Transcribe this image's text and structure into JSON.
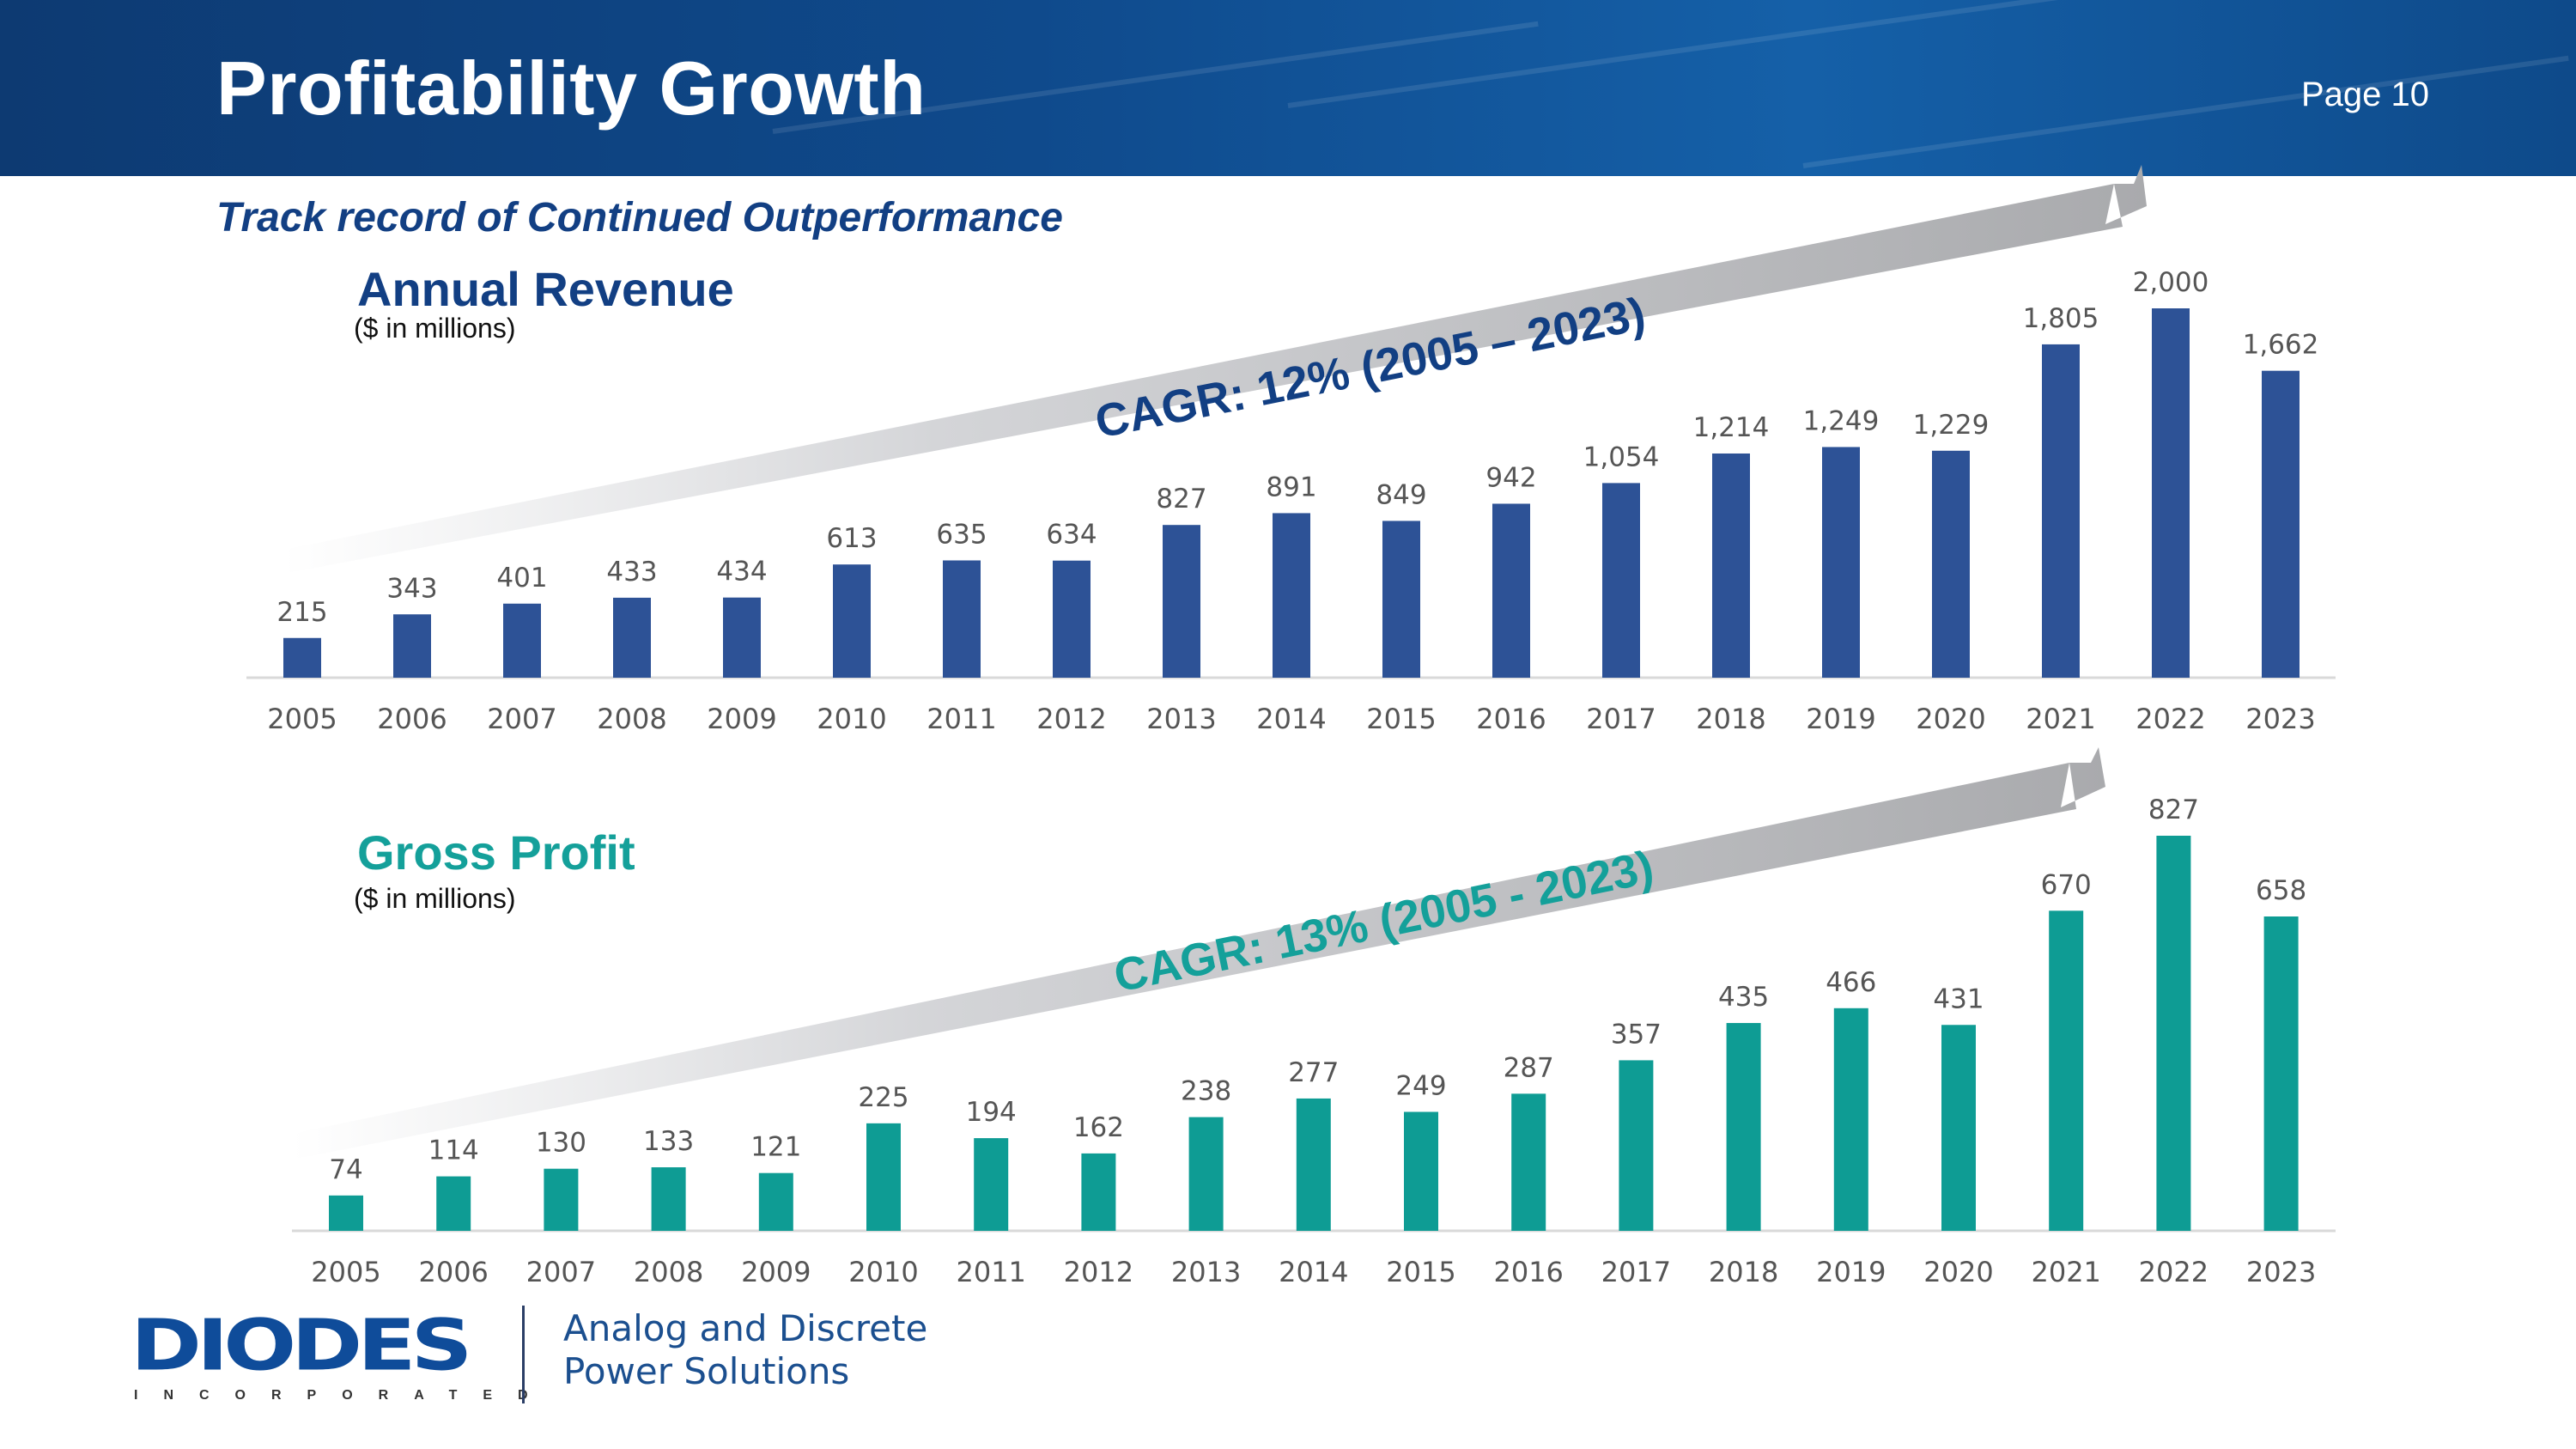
{
  "header": {
    "title": "Profitability Growth",
    "page_number": "Page 10"
  },
  "subtitle": "Track record of Continued Outperformance",
  "colors": {
    "header_blue": "#0f4a8c",
    "revenue_bar": "#2d5296",
    "profit_bar": "#0e9c94",
    "revenue_title": "#123f83",
    "profit_title": "#14a09a",
    "arrow_gray": "#b7b8bb"
  },
  "footer": {
    "logo_text": "DIODES",
    "logo_sub": "INCORPORATED",
    "tagline_line1": "Analog and Discrete",
    "tagline_line2": "Power Solutions"
  },
  "chart_data": [
    {
      "type": "bar",
      "title": "Annual Revenue",
      "unit_note": "($ in millions)",
      "cagr_label": "CAGR: 12% (2005 – 2023)",
      "categories": [
        "2005",
        "2006",
        "2007",
        "2008",
        "2009",
        "2010",
        "2011",
        "2012",
        "2013",
        "2014",
        "2015",
        "2016",
        "2017",
        "2018",
        "2019",
        "2020",
        "2021",
        "2022",
        "2023"
      ],
      "values": [
        215,
        343,
        401,
        433,
        434,
        613,
        635,
        634,
        827,
        891,
        849,
        942,
        1054,
        1214,
        1249,
        1229,
        1805,
        2000,
        1662
      ],
      "data_labels": [
        "215",
        "343",
        "401",
        "433",
        "434",
        "613",
        "635",
        "634",
        "827",
        "891",
        "849",
        "942",
        "1,054",
        "1,214",
        "1,249",
        "1,229",
        "1,805",
        "2,000",
        "1,662"
      ],
      "ylim": [
        0,
        2000
      ],
      "xlabel": "",
      "ylabel": ""
    },
    {
      "type": "bar",
      "title": "Gross Profit",
      "unit_note": "($ in millions)",
      "cagr_label": "CAGR: 13% (2005 - 2023)",
      "categories": [
        "2005",
        "2006",
        "2007",
        "2008",
        "2009",
        "2010",
        "2011",
        "2012",
        "2013",
        "2014",
        "2015",
        "2016",
        "2017",
        "2018",
        "2019",
        "2020",
        "2021",
        "2022",
        "2023"
      ],
      "values": [
        74,
        114,
        130,
        133,
        121,
        225,
        194,
        162,
        238,
        277,
        249,
        287,
        357,
        435,
        466,
        431,
        670,
        827,
        658
      ],
      "data_labels": [
        "74",
        "114",
        "130",
        "133",
        "121",
        "225",
        "194",
        "162",
        "238",
        "277",
        "249",
        "287",
        "357",
        "435",
        "466",
        "431",
        "670",
        "827",
        "658"
      ],
      "ylim": [
        0,
        827
      ],
      "xlabel": "",
      "ylabel": ""
    }
  ]
}
